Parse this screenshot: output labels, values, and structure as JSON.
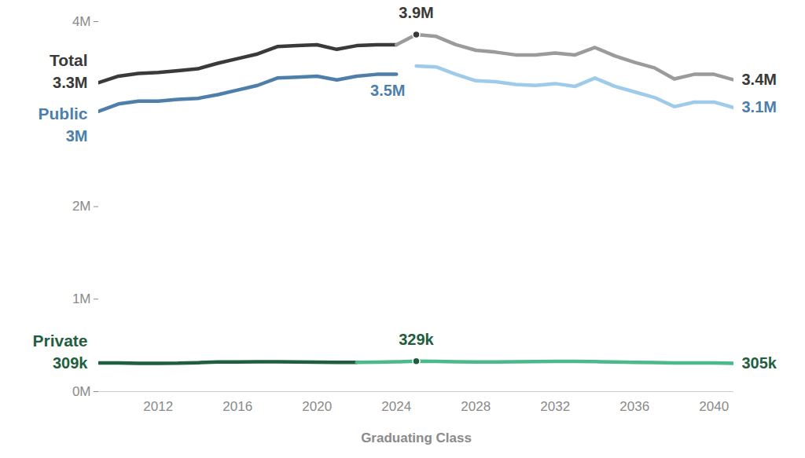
{
  "chart_data": {
    "type": "line",
    "x_label": "Graduating Class",
    "x": [
      2009,
      2010,
      2011,
      2012,
      2013,
      2014,
      2015,
      2016,
      2017,
      2018,
      2019,
      2020,
      2021,
      2022,
      2023,
      2024,
      2025,
      2026,
      2027,
      2028,
      2029,
      2030,
      2031,
      2032,
      2033,
      2034,
      2035,
      2036,
      2037,
      2038,
      2039,
      2040,
      2041
    ],
    "xlim": [
      2009,
      2041
    ],
    "xticks": [
      2012,
      2016,
      2020,
      2024,
      2028,
      2032,
      2036,
      2040
    ],
    "ylim": [
      0,
      4000000
    ],
    "yticks": [
      {
        "value": 0,
        "label": "0M"
      },
      {
        "value": 1000000,
        "label": "1M"
      },
      {
        "value": 2000000,
        "label": "2M"
      },
      {
        "value": 4000000,
        "label": "4M"
      }
    ],
    "series": [
      {
        "name": "Total",
        "color": "#3a3a3a",
        "values": [
          3340000,
          3410000,
          3440000,
          3450000,
          3470000,
          3490000,
          3550000,
          3600000,
          3650000,
          3730000,
          3740000,
          3750000,
          3700000,
          3740000,
          3750000,
          3750000,
          null,
          null,
          null,
          null,
          null,
          null,
          null,
          null,
          null,
          null,
          null,
          null,
          null,
          null,
          null,
          null,
          null
        ],
        "value_labels": [
          "3.3M",
          null,
          null,
          null,
          null,
          null,
          null,
          null,
          null,
          null,
          null,
          null,
          null,
          null,
          null,
          null,
          null,
          null,
          null,
          null,
          null,
          null,
          null,
          null,
          null,
          null,
          null,
          null,
          null,
          null,
          null,
          null,
          null
        ]
      },
      {
        "name": "Total",
        "color": "#9b9b9b",
        "values": [
          null,
          null,
          null,
          null,
          null,
          null,
          null,
          null,
          null,
          null,
          null,
          null,
          null,
          null,
          null,
          3750000,
          3860000,
          3840000,
          3750000,
          3690000,
          3670000,
          3640000,
          3640000,
          3660000,
          3640000,
          3720000,
          3630000,
          3560000,
          3500000,
          3380000,
          3430000,
          3430000,
          3370000
        ],
        "value_labels": [
          null,
          null,
          null,
          null,
          null,
          null,
          null,
          null,
          null,
          null,
          null,
          null,
          null,
          null,
          null,
          null,
          "3.9M",
          null,
          null,
          null,
          null,
          null,
          null,
          null,
          null,
          null,
          null,
          null,
          null,
          null,
          null,
          null,
          "3.4M"
        ]
      },
      {
        "name": "Public",
        "color": "#4e7fab",
        "values": [
          3030000,
          3110000,
          3140000,
          3140000,
          3160000,
          3170000,
          3210000,
          3260000,
          3310000,
          3390000,
          3400000,
          3410000,
          3370000,
          3410000,
          3430000,
          3430000,
          null,
          null,
          null,
          null,
          null,
          null,
          null,
          null,
          null,
          null,
          null,
          null,
          null,
          null,
          null,
          null,
          null
        ],
        "value_labels": [
          "3M",
          null,
          null,
          null,
          null,
          null,
          null,
          null,
          null,
          null,
          null,
          null,
          null,
          null,
          null,
          null,
          null,
          null,
          null,
          null,
          null,
          null,
          null,
          null,
          null,
          null,
          null,
          null,
          null,
          null,
          null,
          null,
          null
        ]
      },
      {
        "name": "Public",
        "color": "#9fcbeb",
        "values": [
          null,
          null,
          null,
          null,
          null,
          null,
          null,
          null,
          null,
          null,
          null,
          null,
          null,
          null,
          null,
          null,
          3520000,
          3510000,
          3430000,
          3360000,
          3350000,
          3320000,
          3310000,
          3330000,
          3300000,
          3390000,
          3300000,
          3240000,
          3180000,
          3080000,
          3130000,
          3130000,
          3070000
        ],
        "value_labels": [
          null,
          null,
          null,
          null,
          null,
          null,
          null,
          null,
          null,
          null,
          null,
          null,
          null,
          null,
          null,
          null,
          "3.5M",
          null,
          null,
          null,
          null,
          null,
          null,
          null,
          null,
          null,
          null,
          null,
          null,
          null,
          null,
          null,
          "3.1M"
        ]
      },
      {
        "name": "Private",
        "color": "#1f5e3e",
        "values": [
          309000,
          311000,
          306000,
          306000,
          307000,
          313000,
          320000,
          321000,
          323000,
          323000,
          321000,
          319000,
          317000,
          316000,
          null,
          null,
          null,
          null,
          null,
          null,
          null,
          null,
          null,
          null,
          null,
          null,
          null,
          null,
          null,
          null,
          null,
          null,
          null
        ],
        "value_labels": [
          "309k",
          null,
          null,
          null,
          null,
          null,
          null,
          null,
          null,
          null,
          null,
          null,
          null,
          null,
          null,
          null,
          null,
          null,
          null,
          null,
          null,
          null,
          null,
          null,
          null,
          null,
          null,
          null,
          null,
          null,
          null,
          null,
          null
        ]
      },
      {
        "name": "Private",
        "color": "#4cb98a",
        "values": [
          null,
          null,
          null,
          null,
          null,
          null,
          null,
          null,
          null,
          null,
          null,
          null,
          null,
          316000,
          318000,
          322000,
          329000,
          327000,
          323000,
          320000,
          320000,
          322000,
          325000,
          326000,
          328000,
          324000,
          320000,
          317000,
          315000,
          309000,
          310000,
          309000,
          305000
        ],
        "value_labels": [
          null,
          null,
          null,
          null,
          null,
          null,
          null,
          null,
          null,
          null,
          null,
          null,
          null,
          null,
          null,
          null,
          "329k",
          null,
          null,
          null,
          null,
          null,
          null,
          null,
          null,
          null,
          null,
          null,
          null,
          null,
          null,
          null,
          "305k"
        ]
      }
    ]
  }
}
